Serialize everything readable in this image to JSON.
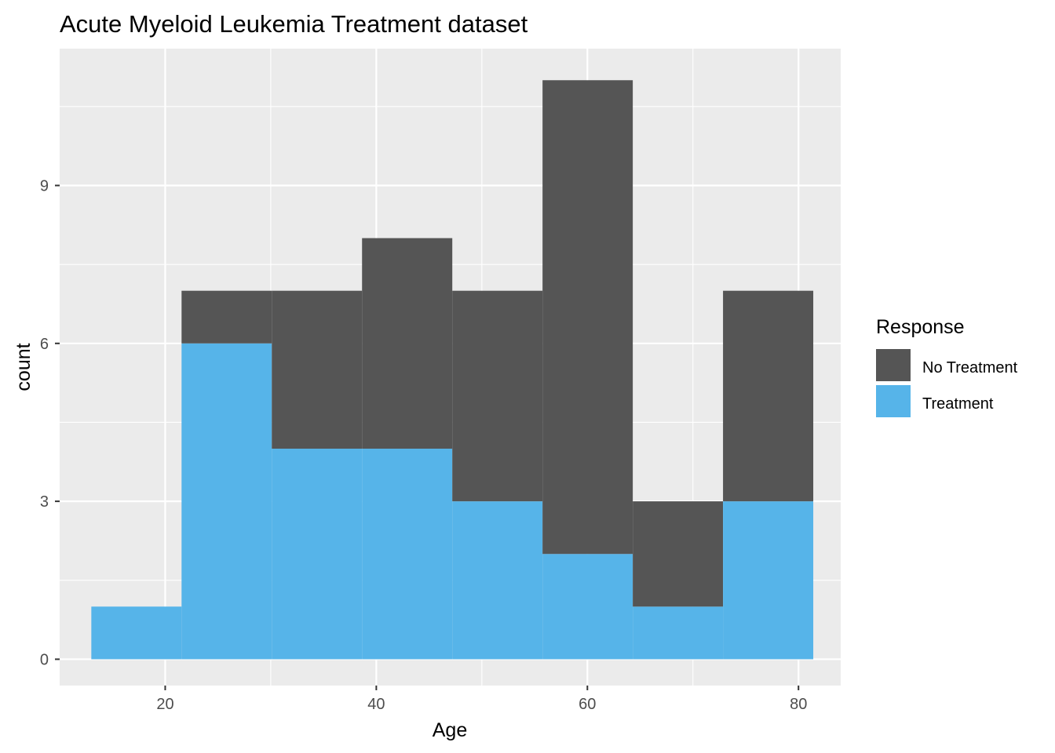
{
  "chart_data": {
    "type": "bar",
    "subtype": "stacked-histogram",
    "title": "Acute Myeloid Leukemia Treatment dataset",
    "xlabel": "Age",
    "ylabel": "count",
    "xlim": [
      10,
      84
    ],
    "ylim": [
      -0.5,
      11.6
    ],
    "xticks": [
      20,
      40,
      60,
      80
    ],
    "xtick_labels": [
      "20",
      "40",
      "60",
      "80"
    ],
    "yticks": [
      0,
      3,
      6,
      9
    ],
    "ytick_labels": [
      "0",
      "3",
      "6",
      "9"
    ],
    "grid": true,
    "bin_edges": [
      13,
      21.55,
      30.1,
      38.65,
      47.2,
      55.75,
      64.3,
      72.85,
      81.4
    ],
    "series": [
      {
        "name": "Treatment",
        "color": "#56B4E9",
        "values": [
          1,
          6,
          4,
          4,
          3,
          2,
          1,
          3
        ]
      },
      {
        "name": "No Treatment",
        "color": "#555555",
        "values": [
          0,
          1,
          3,
          4,
          4,
          9,
          2,
          4
        ]
      }
    ],
    "legend": {
      "title": "Response",
      "position": "right",
      "items": [
        {
          "label": "No Treatment",
          "color": "#555555"
        },
        {
          "label": "Treatment",
          "color": "#56B4E9"
        }
      ]
    }
  }
}
